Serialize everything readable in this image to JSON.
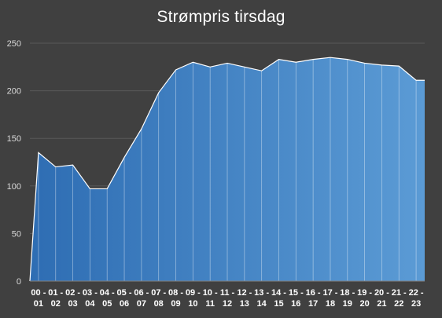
{
  "chart_data": {
    "type": "area",
    "title": "Strømpris tirsdag",
    "xlabel": "",
    "ylabel": "",
    "ylim": [
      0,
      250
    ],
    "yticks": [
      0,
      50,
      100,
      150,
      200,
      250
    ],
    "grid": true,
    "legend": "none",
    "categories": [
      [
        "00 -",
        "01"
      ],
      [
        "01 -",
        "02"
      ],
      [
        "02 -",
        "03"
      ],
      [
        "03 -",
        "04"
      ],
      [
        "04 -",
        "05"
      ],
      [
        "05 -",
        "06"
      ],
      [
        "06 -",
        "07"
      ],
      [
        "07 -",
        "08"
      ],
      [
        "08 -",
        "09"
      ],
      [
        "09 -",
        "10"
      ],
      [
        "10 -",
        "11"
      ],
      [
        "11 -",
        "12"
      ],
      [
        "12 -",
        "13"
      ],
      [
        "13 -",
        "14"
      ],
      [
        "14 -",
        "15"
      ],
      [
        "15 -",
        "16"
      ],
      [
        "16 -",
        "17"
      ],
      [
        "17 -",
        "18"
      ],
      [
        "18 -",
        "19"
      ],
      [
        "19 -",
        "20"
      ],
      [
        "20 -",
        "21"
      ],
      [
        "21 -",
        "22"
      ],
      [
        "22 -",
        "23"
      ]
    ],
    "values": [
      135,
      120,
      122,
      97,
      97,
      130,
      160,
      198,
      222,
      230,
      225,
      229,
      225,
      221,
      233,
      230,
      233,
      235,
      233,
      229,
      227,
      226,
      211
    ],
    "colors": {
      "background": "#404040",
      "gridline": "#595959",
      "area_left": "#2e6db3",
      "area_right": "#5b9bd5",
      "outline": "#ffffff",
      "title": "#ffffff",
      "tick_text": "#d9d9d9"
    }
  }
}
